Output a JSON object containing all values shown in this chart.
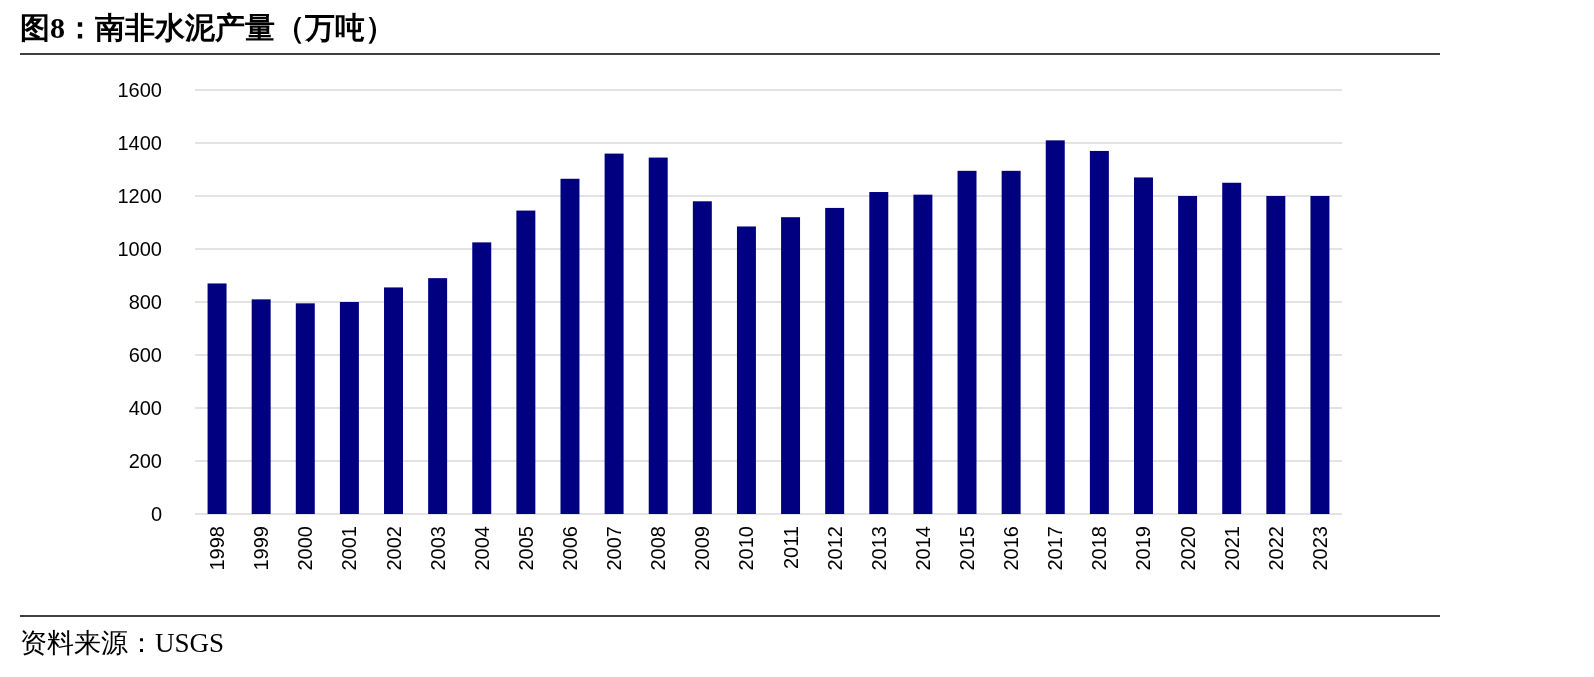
{
  "chart_data": {
    "type": "bar",
    "title": "图8：南非水泥产量（万吨）",
    "categories": [
      "1998",
      "1999",
      "2000",
      "2001",
      "2002",
      "2003",
      "2004",
      "2005",
      "2006",
      "2007",
      "2008",
      "2009",
      "2010",
      "2011",
      "2012",
      "2013",
      "2014",
      "2015",
      "2016",
      "2017",
      "2018",
      "2019",
      "2020",
      "2021",
      "2022",
      "2023"
    ],
    "values": [
      870,
      810,
      795,
      800,
      855,
      890,
      1025,
      1145,
      1265,
      1360,
      1345,
      1180,
      1085,
      1120,
      1155,
      1215,
      1205,
      1295,
      1295,
      1410,
      1370,
      1270,
      1200,
      1250,
      1200,
      1200
    ],
    "color": "#000080",
    "ylim": [
      0,
      1600
    ],
    "yticks": [
      0,
      200,
      400,
      600,
      800,
      1000,
      1200,
      1400,
      1600
    ],
    "grid": "y",
    "annotations": [
      "资料来源：USGS"
    ]
  }
}
